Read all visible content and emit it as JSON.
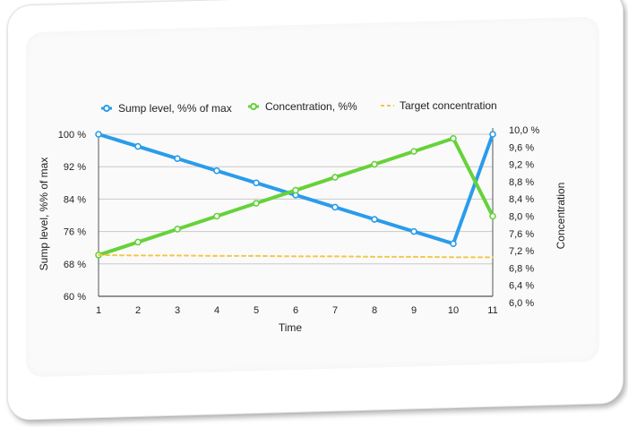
{
  "chart_data": {
    "type": "line",
    "x": [
      1,
      2,
      3,
      4,
      5,
      6,
      7,
      8,
      9,
      10,
      11
    ],
    "xlabel": "Time",
    "ylabel_left": "Sump level, %% of max",
    "ylabel_right": "Concentration",
    "left_axis": {
      "range": [
        60,
        100
      ],
      "ticks": [
        60,
        68,
        76,
        84,
        92,
        100
      ],
      "tick_labels": [
        "60 %",
        "68 %",
        "76 %",
        "84 %",
        "92 %",
        "100 %"
      ]
    },
    "right_axis": {
      "range": [
        6.0,
        10.0
      ],
      "ticks": [
        6.0,
        6.4,
        6.8,
        7.2,
        7.6,
        8.0,
        8.4,
        8.8,
        9.2,
        9.6,
        10.0
      ],
      "tick_labels": [
        "6,0 %",
        "6,4 %",
        "6,8 %",
        "7,2 %",
        "7,6 %",
        "8,0 %",
        "8,4 %",
        "8,8 %",
        "9,2 %",
        "9,6 %",
        "10,0 %"
      ]
    },
    "series": [
      {
        "name": "Sump level, %% of max",
        "axis": "left",
        "color": "#2a9cea",
        "style": "solid",
        "values": [
          100,
          97,
          94,
          91,
          88,
          85,
          82,
          79,
          76,
          73,
          100
        ]
      },
      {
        "name": "Concentration, %%",
        "axis": "right",
        "color": "#66d23a",
        "style": "solid",
        "values": [
          7.1,
          7.4,
          7.7,
          8.0,
          8.3,
          8.6,
          8.9,
          9.2,
          9.5,
          9.8,
          8.0
        ]
      },
      {
        "name": "Target concentration",
        "axis": "right",
        "color": "#f2c84a",
        "style": "dashed",
        "values": [
          7.1,
          7.09,
          7.09,
          7.08,
          7.08,
          7.07,
          7.07,
          7.06,
          7.06,
          7.05,
          7.05
        ]
      }
    ],
    "grid": true,
    "legend": "top"
  }
}
